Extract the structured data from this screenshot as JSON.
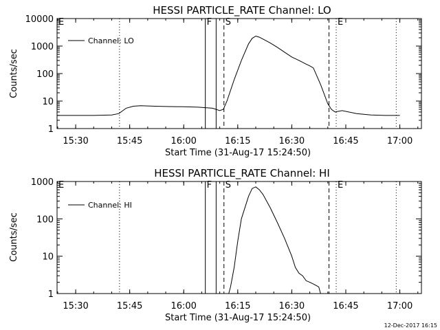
{
  "footer_stamp": "12-Dec-2017 16:15",
  "chart_data": [
    {
      "type": "line",
      "title": "HESSI PARTICLE_RATE Channel: LO",
      "xlabel": "Start Time (31-Aug-17 15:24:50)",
      "ylabel": "Counts/sec",
      "xlim": [
        "15:24:50",
        "17:06:00"
      ],
      "ylim": [
        1,
        10000
      ],
      "yscale": "log",
      "x_ticks": [
        "15:30",
        "15:45",
        "16:00",
        "16:15",
        "16:30",
        "16:45",
        "17:00"
      ],
      "y_ticks": [
        "1",
        "10",
        "100",
        "1000",
        "10000"
      ],
      "legend": {
        "label": "Channel: LO",
        "placement": "top-left"
      },
      "markers": [
        {
          "time": "15:24:50",
          "style": "dotted",
          "label": "E"
        },
        {
          "time": "15:42:10",
          "style": "dotted",
          "label": ""
        },
        {
          "time": "16:06:00",
          "style": "solid",
          "label": "F"
        },
        {
          "time": "16:09:00",
          "style": "solid",
          "label": ""
        },
        {
          "time": "16:11:10",
          "style": "dashed",
          "label": "S"
        },
        {
          "time": "16:40:20",
          "style": "dashed",
          "label": ""
        },
        {
          "time": "16:42:20",
          "style": "dotted",
          "label": "E"
        },
        {
          "time": "16:59:00",
          "style": "dotted",
          "label": ""
        }
      ],
      "series": [
        {
          "name": "Channel: LO",
          "x": [
            "15:24:50",
            "15:30:00",
            "15:35:00",
            "15:40:00",
            "15:42:00",
            "15:44:00",
            "15:46:00",
            "15:48:00",
            "15:52:00",
            "15:56:00",
            "16:00:00",
            "16:04:00",
            "16:08:00",
            "16:10:00",
            "16:11:00",
            "16:12:00",
            "16:14:00",
            "16:16:00",
            "16:18:00",
            "16:19:00",
            "16:20:00",
            "16:21:00",
            "16:22:00",
            "16:24:00",
            "16:26:00",
            "16:28:00",
            "16:30:00",
            "16:32:00",
            "16:34:00",
            "16:35:00",
            "16:36:00",
            "16:38:00",
            "16:40:00",
            "16:41:00",
            "16:42:00",
            "16:44:00",
            "16:48:00",
            "16:52:00",
            "16:56:00",
            "17:00:00"
          ],
          "y": [
            3,
            3,
            3,
            3.1,
            3.5,
            5.5,
            6.5,
            6.8,
            6.5,
            6.3,
            6.2,
            6,
            5.5,
            4.5,
            5,
            10,
            60,
            300,
            1200,
            1900,
            2300,
            2100,
            1800,
            1300,
            900,
            600,
            400,
            300,
            220,
            190,
            160,
            40,
            8,
            5,
            4,
            4.5,
            3.5,
            3.1,
            3,
            3
          ]
        }
      ]
    },
    {
      "type": "line",
      "title": "HESSI PARTICLE_RATE Channel: HI",
      "xlabel": "Start Time (31-Aug-17 15:24:50)",
      "ylabel": "Counts/sec",
      "xlim": [
        "15:24:50",
        "17:06:00"
      ],
      "ylim": [
        1,
        1000
      ],
      "yscale": "log",
      "x_ticks": [
        "15:30",
        "15:45",
        "16:00",
        "16:15",
        "16:30",
        "16:45",
        "17:00"
      ],
      "y_ticks": [
        "1",
        "10",
        "100",
        "1000"
      ],
      "legend": {
        "label": "Channel: HI",
        "placement": "top-left"
      },
      "markers": [
        {
          "time": "15:24:50",
          "style": "dotted",
          "label": "E"
        },
        {
          "time": "15:42:10",
          "style": "dotted",
          "label": ""
        },
        {
          "time": "16:06:00",
          "style": "solid",
          "label": "F"
        },
        {
          "time": "16:09:00",
          "style": "solid",
          "label": ""
        },
        {
          "time": "16:11:10",
          "style": "dashed",
          "label": "S"
        },
        {
          "time": "16:40:20",
          "style": "dashed",
          "label": ""
        },
        {
          "time": "16:42:20",
          "style": "dotted",
          "label": "E"
        },
        {
          "time": "16:59:00",
          "style": "dotted",
          "label": ""
        }
      ],
      "series": [
        {
          "name": "Channel: HI",
          "x": [
            "16:12:30",
            "16:13:00",
            "16:14:00",
            "16:15:00",
            "16:16:00",
            "16:18:00",
            "16:19:00",
            "16:20:00",
            "16:21:00",
            "16:22:00",
            "16:24:00",
            "16:26:00",
            "16:28:00",
            "16:30:00",
            "16:31:00",
            "16:32:00",
            "16:33:00",
            "16:34:00",
            "16:35:00",
            "16:36:00",
            "16:37:00",
            "16:37:30",
            "16:38:00"
          ],
          "y": [
            1,
            1.5,
            5,
            25,
            100,
            400,
            650,
            720,
            600,
            450,
            200,
            80,
            30,
            10,
            5,
            3.5,
            3,
            2.2,
            2,
            1.8,
            1.6,
            1.5,
            1
          ]
        }
      ]
    }
  ]
}
